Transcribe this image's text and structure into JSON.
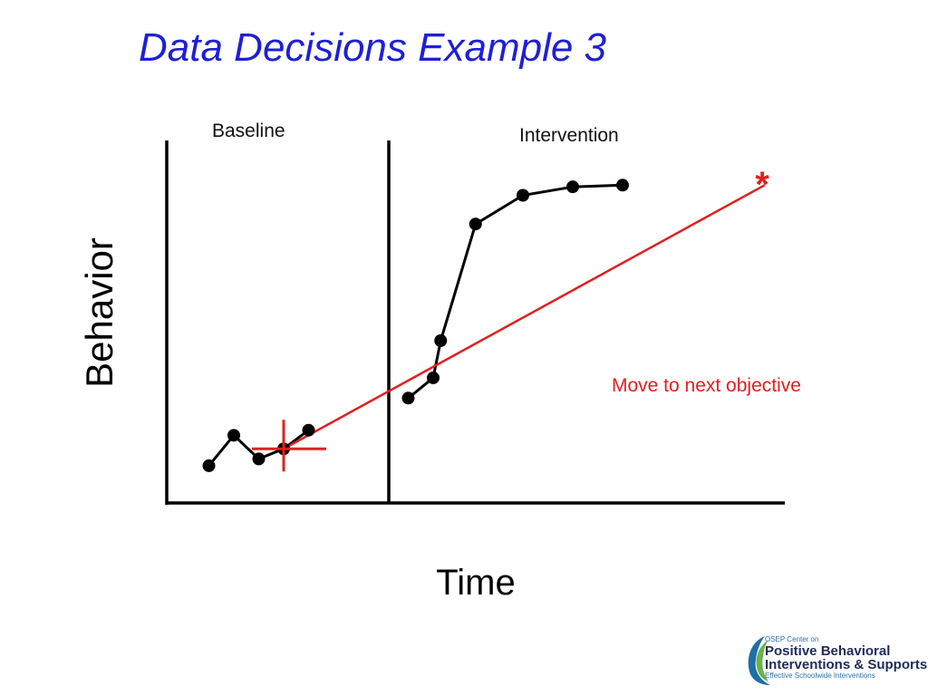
{
  "slide": {
    "title": "Data Decisions Example 3"
  },
  "chart_data": {
    "type": "line",
    "title": "",
    "xlabel": "Time",
    "ylabel": "Behavior",
    "phases": [
      "Baseline",
      "Intervention"
    ],
    "phase_change_after_index": 4,
    "series": [
      {
        "phase": "Baseline",
        "x": [
          1,
          2,
          3,
          4,
          5
        ],
        "values": [
          7,
          16,
          9,
          12,
          17.5
        ]
      },
      {
        "phase": "Intervention",
        "x": [
          9,
          10,
          10.3,
          11.7,
          13.6,
          15.6,
          17.6
        ],
        "values": [
          27,
          33,
          44,
          78.5,
          87,
          89.5,
          90
        ]
      }
    ],
    "aimline": {
      "x": [
        4,
        23.3
      ],
      "values": [
        12,
        90
      ]
    },
    "median_marker": {
      "x": 4,
      "value": 12
    },
    "annotation": {
      "text": "Move to next objective",
      "marker": "*"
    },
    "colors": {
      "data": "#000000",
      "aimline": "#e02020",
      "title": "#1f1fd6"
    },
    "xlim": [
      0,
      25
    ],
    "ylim": [
      0,
      100
    ],
    "grid": false,
    "axis_tick_labels": false
  },
  "logo": {
    "line1": "OSEP Center on",
    "line2": "Positive Behavioral",
    "line3": "Interventions & Supports",
    "line4": "Effective Schoolwide Interventions"
  }
}
